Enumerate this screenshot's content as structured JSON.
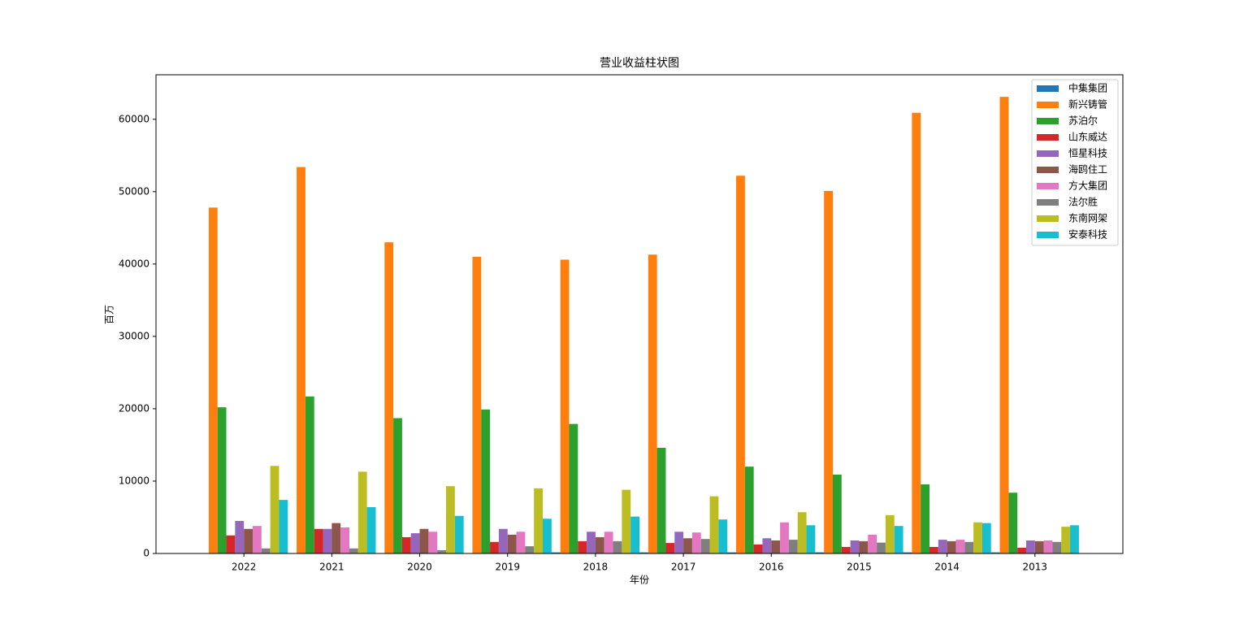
{
  "chart_data": {
    "type": "bar",
    "title": "营业收益柱状图",
    "x_label": "年份",
    "y_label": "百万",
    "categories": [
      "2022",
      "2021",
      "2020",
      "2019",
      "2018",
      "2017",
      "2016",
      "2015",
      "2014",
      "2013"
    ],
    "series": [
      {
        "name": "中集集团",
        "color": "#1f77b4",
        "values": [
          50,
          50,
          50,
          50,
          150,
          150,
          150,
          150,
          150,
          150
        ]
      },
      {
        "name": "新兴铸管",
        "color": "#ff7f0e",
        "values": [
          47800,
          53400,
          43000,
          41000,
          40600,
          41300,
          52200,
          50100,
          60900,
          63100
        ]
      },
      {
        "name": "苏泊尔",
        "color": "#2ca02c",
        "values": [
          20200,
          21700,
          18700,
          19900,
          17900,
          14600,
          12000,
          10900,
          9550,
          8400
        ]
      },
      {
        "name": "山东威达",
        "color": "#d62728",
        "values": [
          2500,
          3400,
          2250,
          1600,
          1700,
          1450,
          1250,
          900,
          900,
          800
        ]
      },
      {
        "name": "恒星科技",
        "color": "#9467bd",
        "values": [
          4500,
          3400,
          2800,
          3400,
          3000,
          3000,
          2100,
          1800,
          1900,
          1800
        ]
      },
      {
        "name": "海鸥住工",
        "color": "#8c564b",
        "values": [
          3400,
          4200,
          3400,
          2600,
          2250,
          2100,
          1800,
          1700,
          1700,
          1700
        ]
      },
      {
        "name": "方大集团",
        "color": "#e377c2",
        "values": [
          3800,
          3600,
          3000,
          3000,
          3000,
          2900,
          4300,
          2600,
          1900,
          1800
        ]
      },
      {
        "name": "法尔胜",
        "color": "#7f7f7f",
        "values": [
          700,
          700,
          450,
          1000,
          1700,
          2000,
          1900,
          1500,
          1600,
          1600
        ]
      },
      {
        "name": "东南网架",
        "color": "#bcbd22",
        "values": [
          12100,
          11300,
          9300,
          9000,
          8800,
          7900,
          5700,
          5300,
          4300,
          3700
        ]
      },
      {
        "name": "安泰科技",
        "color": "#17becf",
        "values": [
          7400,
          6400,
          5200,
          4800,
          5100,
          4700,
          3900,
          3800,
          4200,
          3900
        ]
      }
    ],
    "ylim": [
      0,
      66150
    ],
    "yticks": [
      0,
      10000,
      20000,
      30000,
      40000,
      50000,
      60000
    ],
    "grid": false,
    "legend": "upper right"
  }
}
